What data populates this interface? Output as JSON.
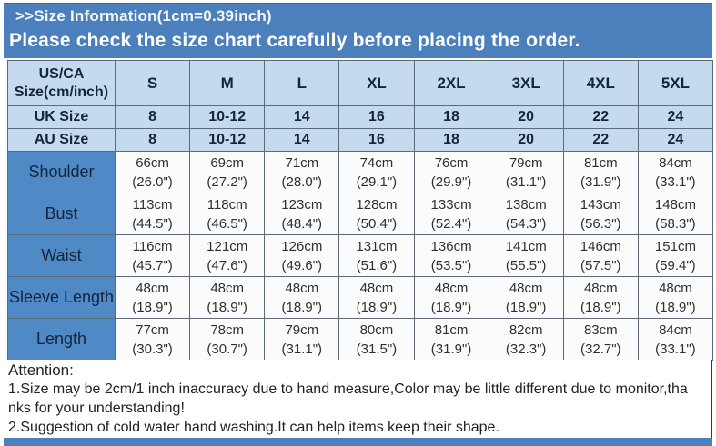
{
  "banner": {
    "title": ">>Size Information(1cm=0.39inch)",
    "subtitle": "Please check the size chart carefully before placing the order."
  },
  "colors": {
    "banner-blue": "#4b80bd",
    "label-blue": "#4f89c6",
    "light-blue": "#c4daee",
    "table-border": "#5d6b79",
    "header-text": "#16263a",
    "cell-text": "#303030"
  },
  "table": {
    "corner_lines": [
      "US/CA",
      "Size(cm/inch)"
    ],
    "size_headers": [
      "S",
      "M",
      "L",
      "XL",
      "2XL",
      "3XL",
      "4XL",
      "5XL"
    ],
    "size_rows": [
      {
        "label": "UK Size",
        "values": [
          "8",
          "10-12",
          "14",
          "16",
          "18",
          "20",
          "22",
          "24"
        ]
      },
      {
        "label": "AU Size",
        "values": [
          "8",
          "10-12",
          "14",
          "16",
          "18",
          "20",
          "22",
          "24"
        ]
      }
    ],
    "measurement_rows": [
      {
        "label": "Shoulder",
        "cm": [
          "66cm",
          "69cm",
          "71cm",
          "74cm",
          "76cm",
          "79cm",
          "81cm",
          "84cm"
        ],
        "inch": [
          "(26.0\")",
          "(27.2\")",
          "(28.0\")",
          "(29.1\")",
          "(29.9\")",
          "(31.1\")",
          "(31.9\")",
          "(33.1\")"
        ]
      },
      {
        "label": "Bust",
        "cm": [
          "113cm",
          "118cm",
          "123cm",
          "128cm",
          "133cm",
          "138cm",
          "143cm",
          "148cm"
        ],
        "inch": [
          "(44.5\")",
          "(46.5\")",
          "(48.4\")",
          "(50.4\")",
          "(52.4\")",
          "(54.3\")",
          "(56.3\")",
          "(58.3\")"
        ]
      },
      {
        "label": "Waist",
        "cm": [
          "116cm",
          "121cm",
          "126cm",
          "131cm",
          "136cm",
          "141cm",
          "146cm",
          "151cm"
        ],
        "inch": [
          "(45.7\")",
          "(47.6\")",
          "(49.6\")",
          "(51.6\")",
          "(53.5\")",
          "(55.5\")",
          "(57.5\")",
          "(59.4\")"
        ]
      },
      {
        "label": "Sleeve Length",
        "cm": [
          "48cm",
          "48cm",
          "48cm",
          "48cm",
          "48cm",
          "48cm",
          "48cm",
          "48cm"
        ],
        "inch": [
          "(18.9\")",
          "(18.9\")",
          "(18.9\")",
          "(18.9\")",
          "(18.9\")",
          "(18.9\")",
          "(18.9\")",
          "(18.9\")"
        ]
      },
      {
        "label": "Length",
        "cm": [
          "77cm",
          "78cm",
          "79cm",
          "80cm",
          "81cm",
          "82cm",
          "83cm",
          "84cm"
        ],
        "inch": [
          "(30.3\")",
          "(30.7\")",
          "(31.1\")",
          "(31.5\")",
          "(31.9\")",
          "(32.3\")",
          "(32.7\")",
          "(33.1\")"
        ]
      }
    ]
  },
  "attention": {
    "heading": "Attention:",
    "lines": [
      "1.Size may be 2cm/1 inch inaccuracy due to hand measure,Color may be little different due to monitor,tha",
      "nks for your understanding!",
      "2.Suggestion of cold water hand washing.It can help items keep their shape."
    ]
  }
}
